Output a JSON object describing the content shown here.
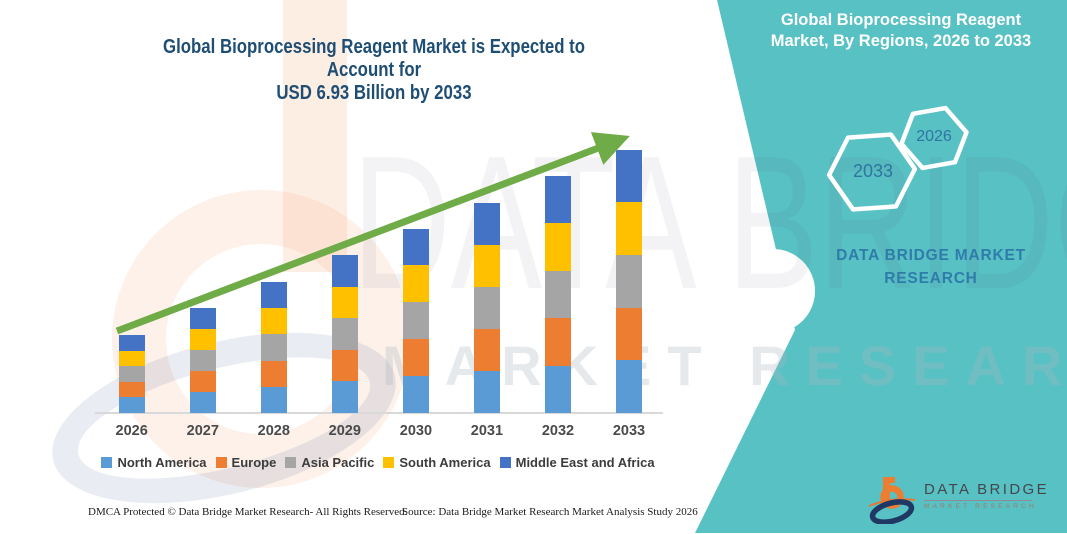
{
  "page": {
    "teal": "#58C1C4",
    "title_color": "#1F4E74",
    "arrow_color": "#6FAC47"
  },
  "chart_title": {
    "line1": "Global Bioprocessing Reagent Market is Expected to Account for",
    "line2": "USD 6.93 Billion by 2033"
  },
  "panel": {
    "title_line1": "Global Bioprocessing Reagent",
    "title_line2": "Market, By Regions, 2026 to 2033",
    "hex_large_year": "2033",
    "hex_small_year": "2026",
    "brand_line1": "DATA BRIDGE MARKET",
    "brand_line2": "RESEARCH"
  },
  "watermark": {
    "text1": "DATA BRIDGE",
    "text2": "MARKET RESEARCH"
  },
  "logo": {
    "name": "DATA BRIDGE",
    "subtitle": "MARKET RESEARCH"
  },
  "footer": {
    "left": "DMCA Protected © Data Bridge Market Research-  All Rights Reserved.",
    "source": "Source: Data Bridge Market Research  Market Analysis Study 2026"
  },
  "chart_data": {
    "type": "bar",
    "stacked": true,
    "unit": "USD Billion",
    "categories": [
      "2026",
      "2027",
      "2028",
      "2029",
      "2030",
      "2031",
      "2032",
      "2033"
    ],
    "series": [
      {
        "name": "North America",
        "color": "#5B9BD5",
        "values": [
          0.41,
          0.552,
          0.688,
          0.83,
          0.97,
          1.106,
          1.246,
          1.386
        ]
      },
      {
        "name": "Europe",
        "color": "#ED7D31",
        "values": [
          0.41,
          0.552,
          0.688,
          0.83,
          0.97,
          1.106,
          1.246,
          1.386
        ]
      },
      {
        "name": "Asia Pacific",
        "color": "#A5A5A5",
        "values": [
          0.41,
          0.552,
          0.688,
          0.83,
          0.97,
          1.106,
          1.246,
          1.386
        ]
      },
      {
        "name": "South America",
        "color": "#FFC000",
        "values": [
          0.41,
          0.552,
          0.688,
          0.83,
          0.97,
          1.106,
          1.246,
          1.386
        ]
      },
      {
        "name": "Middle East and Africa",
        "color": "#4472C4",
        "values": [
          0.41,
          0.552,
          0.688,
          0.83,
          0.97,
          1.106,
          1.246,
          1.386
        ]
      }
    ],
    "totals": [
      2.05,
      2.76,
      3.44,
      4.15,
      4.85,
      5.53,
      6.23,
      6.93
    ],
    "ylim": [
      0,
      7
    ],
    "gridlines": false,
    "legend_position": "bottom",
    "trend_arrow": true,
    "annotation": "6.93 Billion by 2033"
  }
}
